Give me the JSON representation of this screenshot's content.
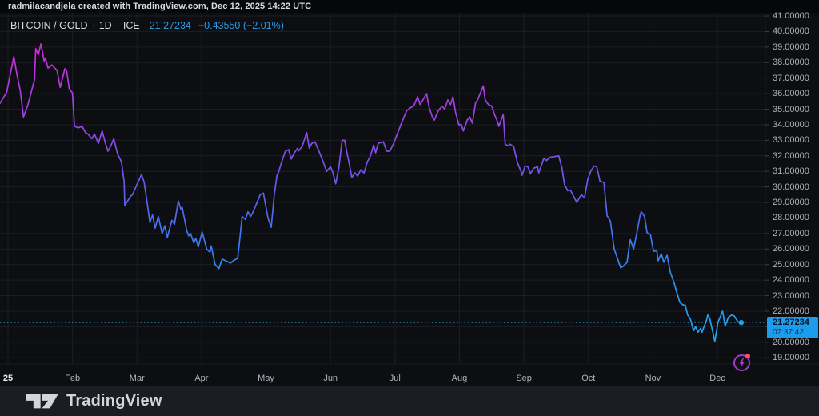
{
  "attribution": {
    "text": "radmilacandjela created with TradingView.com, Dec 12, 2025 14:22 UTC"
  },
  "legend": {
    "symbol": "BITCOIN / GOLD",
    "separator": "·",
    "interval": "1D",
    "exchange": "ICE",
    "price": "21.27234",
    "change": "−0.43550 (−2.01%)"
  },
  "price_label": {
    "price": "21.27234",
    "countdown": "07:37:42"
  },
  "footer": {
    "brand": "TradingView"
  },
  "icons": {
    "bubble": "lightning-icon",
    "notification": "red-dot",
    "logo": "tradingview-logo"
  },
  "colors": {
    "background": "#0d0e11",
    "footer_background": "#1b1d22",
    "grid": "#1b1e24",
    "axis_text": "#aeb2ba",
    "axis_separator": "#17191f",
    "accent_blue": "#2a9be0",
    "price_tag_bg": "#1c9cec",
    "price_tag_text": "#081526",
    "dotted_line": "#2e9fd8",
    "end_dot": "#1ea4f0",
    "bubble_purple": "#a43ac9",
    "notification_red": "#f7525f",
    "line_gradient": [
      [
        0.0,
        "#e11fe4"
      ],
      [
        0.09,
        "#cb29d9"
      ],
      [
        0.23,
        "#a93ce2"
      ],
      [
        0.36,
        "#8a4ae8"
      ],
      [
        0.5,
        "#6659ee"
      ],
      [
        0.64,
        "#3f74f2"
      ],
      [
        0.77,
        "#2b90f0"
      ],
      [
        0.91,
        "#1ea3ef"
      ],
      [
        1.0,
        "#18abf0"
      ]
    ]
  },
  "chart_data": {
    "type": "line",
    "title": "BITCOIN / GOLD · 1D · ICE",
    "last_price": 21.27234,
    "change": "−0.43550",
    "change_percent": "−2.01%",
    "countdown": "07:37:42",
    "grid": true,
    "legend_position": "top-left",
    "x_axis": {
      "unit": "months since Jan 1 2025",
      "ticks": [
        "25",
        "Feb",
        "Mar",
        "Apr",
        "May",
        "Jun",
        "Jul",
        "Aug",
        "Sep",
        "Oct",
        "Nov",
        "Dec"
      ]
    },
    "y_axis": {
      "min": 19,
      "max": 41,
      "ticks": [
        "41.00000",
        "40.00000",
        "39.00000",
        "38.00000",
        "37.00000",
        "36.00000",
        "35.00000",
        "34.00000",
        "33.00000",
        "32.00000",
        "31.00000",
        "30.00000",
        "29.00000",
        "28.00000",
        "27.00000",
        "26.00000",
        "25.00000",
        "24.00000",
        "23.00000",
        "22.00000",
        "21.00000",
        "20.00000",
        "19.00000"
      ]
    },
    "series": [
      {
        "name": "BITCOIN / GOLD",
        "points": [
          [
            -0.12,
            35.4
          ],
          [
            -0.02,
            36.1
          ],
          [
            0.09,
            38.4
          ],
          [
            0.14,
            37.2
          ],
          [
            0.19,
            36.2
          ],
          [
            0.24,
            34.5
          ],
          [
            0.31,
            35.3
          ],
          [
            0.41,
            36.9
          ],
          [
            0.43,
            38.9
          ],
          [
            0.47,
            38.5
          ],
          [
            0.51,
            39.2
          ],
          [
            0.56,
            38.1
          ],
          [
            0.58,
            38.3
          ],
          [
            0.62,
            37.65
          ],
          [
            0.68,
            37.85
          ],
          [
            0.76,
            37.5
          ],
          [
            0.81,
            36.4
          ],
          [
            0.88,
            37.6
          ],
          [
            0.91,
            37.45
          ],
          [
            0.95,
            36.3
          ],
          [
            1.0,
            36.05
          ],
          [
            1.03,
            33.9
          ],
          [
            1.09,
            33.8
          ],
          [
            1.15,
            33.9
          ],
          [
            1.2,
            33.5
          ],
          [
            1.24,
            33.4
          ],
          [
            1.3,
            33.1
          ],
          [
            1.34,
            33.4
          ],
          [
            1.4,
            32.8
          ],
          [
            1.46,
            33.6
          ],
          [
            1.51,
            32.8
          ],
          [
            1.55,
            32.3
          ],
          [
            1.59,
            32.6
          ],
          [
            1.64,
            33.1
          ],
          [
            1.7,
            32.1
          ],
          [
            1.76,
            31.6
          ],
          [
            1.8,
            30.3
          ],
          [
            1.81,
            28.8
          ],
          [
            1.9,
            29.4
          ],
          [
            1.93,
            29.5
          ],
          [
            2.07,
            30.8
          ],
          [
            2.11,
            30.3
          ],
          [
            2.16,
            28.9
          ],
          [
            2.2,
            27.7
          ],
          [
            2.24,
            28.2
          ],
          [
            2.28,
            27.35
          ],
          [
            2.33,
            28.1
          ],
          [
            2.39,
            27.0
          ],
          [
            2.43,
            27.5
          ],
          [
            2.47,
            26.75
          ],
          [
            2.54,
            27.85
          ],
          [
            2.58,
            27.6
          ],
          [
            2.64,
            29.1
          ],
          [
            2.68,
            28.55
          ],
          [
            2.7,
            28.7
          ],
          [
            2.77,
            27.2
          ],
          [
            2.8,
            26.85
          ],
          [
            2.83,
            27.0
          ],
          [
            2.88,
            26.4
          ],
          [
            2.91,
            26.7
          ],
          [
            2.95,
            26.15
          ],
          [
            3.01,
            27.1
          ],
          [
            3.08,
            26.0
          ],
          [
            3.13,
            25.8
          ],
          [
            3.15,
            26.2
          ],
          [
            3.21,
            25.0
          ],
          [
            3.27,
            24.75
          ],
          [
            3.32,
            25.35
          ],
          [
            3.37,
            25.25
          ],
          [
            3.45,
            25.1
          ],
          [
            3.48,
            25.2
          ],
          [
            3.51,
            25.3
          ],
          [
            3.56,
            25.4
          ],
          [
            3.6,
            26.9
          ],
          [
            3.63,
            28.1
          ],
          [
            3.68,
            27.9
          ],
          [
            3.72,
            28.4
          ],
          [
            3.76,
            28.1
          ],
          [
            3.79,
            28.3
          ],
          [
            3.84,
            28.8
          ],
          [
            3.91,
            29.5
          ],
          [
            3.96,
            29.6
          ],
          [
            4.03,
            28.0
          ],
          [
            4.08,
            27.4
          ],
          [
            4.13,
            29.55
          ],
          [
            4.17,
            30.75
          ],
          [
            4.19,
            30.9
          ],
          [
            4.25,
            31.7
          ],
          [
            4.3,
            32.3
          ],
          [
            4.35,
            32.4
          ],
          [
            4.39,
            31.8
          ],
          [
            4.44,
            32.2
          ],
          [
            4.49,
            32.5
          ],
          [
            4.5,
            32.3
          ],
          [
            4.56,
            32.6
          ],
          [
            4.63,
            33.5
          ],
          [
            4.67,
            32.5
          ],
          [
            4.71,
            32.8
          ],
          [
            4.76,
            32.9
          ],
          [
            4.81,
            32.4
          ],
          [
            4.87,
            31.8
          ],
          [
            4.94,
            31.0
          ],
          [
            5.0,
            31.3
          ],
          [
            5.03,
            31.0
          ],
          [
            5.08,
            30.2
          ],
          [
            5.13,
            31.25
          ],
          [
            5.18,
            33.0
          ],
          [
            5.22,
            33.0
          ],
          [
            5.25,
            32.3
          ],
          [
            5.3,
            31.3
          ],
          [
            5.33,
            30.6
          ],
          [
            5.38,
            30.9
          ],
          [
            5.42,
            30.7
          ],
          [
            5.47,
            31.1
          ],
          [
            5.52,
            30.9
          ],
          [
            5.57,
            31.6
          ],
          [
            5.62,
            32.0
          ],
          [
            5.67,
            32.7
          ],
          [
            5.7,
            32.2
          ],
          [
            5.74,
            32.8
          ],
          [
            5.82,
            32.9
          ],
          [
            5.87,
            32.3
          ],
          [
            5.92,
            32.3
          ],
          [
            5.98,
            32.8
          ],
          [
            6.11,
            34.2
          ],
          [
            6.18,
            34.9
          ],
          [
            6.24,
            35.1
          ],
          [
            6.29,
            35.2
          ],
          [
            6.35,
            35.8
          ],
          [
            6.39,
            35.3
          ],
          [
            6.49,
            36.0
          ],
          [
            6.53,
            35.1
          ],
          [
            6.58,
            34.5
          ],
          [
            6.61,
            34.3
          ],
          [
            6.67,
            34.9
          ],
          [
            6.73,
            35.2
          ],
          [
            6.77,
            35.0
          ],
          [
            6.82,
            35.6
          ],
          [
            6.86,
            35.3
          ],
          [
            6.9,
            35.8
          ],
          [
            6.94,
            34.8
          ],
          [
            6.99,
            34.0
          ],
          [
            7.03,
            34.0
          ],
          [
            7.06,
            33.6
          ],
          [
            7.12,
            34.3
          ],
          [
            7.16,
            34.5
          ],
          [
            7.2,
            34.1
          ],
          [
            7.25,
            35.4
          ],
          [
            7.28,
            35.6
          ],
          [
            7.37,
            36.5
          ],
          [
            7.4,
            35.6
          ],
          [
            7.45,
            35.3
          ],
          [
            7.5,
            35.2
          ],
          [
            7.54,
            34.7
          ],
          [
            7.59,
            34.2
          ],
          [
            7.61,
            33.9
          ],
          [
            7.68,
            34.65
          ],
          [
            7.71,
            32.75
          ],
          [
            7.75,
            32.65
          ],
          [
            7.78,
            32.75
          ],
          [
            7.84,
            32.6
          ],
          [
            7.9,
            31.55
          ],
          [
            7.95,
            31.05
          ],
          [
            7.97,
            30.75
          ],
          [
            8.02,
            31.35
          ],
          [
            8.06,
            31.3
          ],
          [
            8.1,
            30.85
          ],
          [
            8.15,
            31.2
          ],
          [
            8.21,
            31.3
          ],
          [
            8.23,
            30.9
          ],
          [
            8.31,
            31.85
          ],
          [
            8.35,
            31.7
          ],
          [
            8.4,
            31.9
          ],
          [
            8.54,
            32.0
          ],
          [
            8.59,
            31.2
          ],
          [
            8.63,
            30.15
          ],
          [
            8.68,
            29.75
          ],
          [
            8.72,
            29.8
          ],
          [
            8.82,
            29.0
          ],
          [
            8.89,
            29.5
          ],
          [
            8.94,
            29.3
          ],
          [
            8.99,
            30.5
          ],
          [
            9.04,
            31.05
          ],
          [
            9.09,
            31.35
          ],
          [
            9.13,
            31.3
          ],
          [
            9.18,
            30.35
          ],
          [
            9.24,
            30.3
          ],
          [
            9.29,
            28.15
          ],
          [
            9.34,
            27.8
          ],
          [
            9.4,
            26.0
          ],
          [
            9.5,
            24.8
          ],
          [
            9.54,
            24.9
          ],
          [
            9.6,
            25.15
          ],
          [
            9.63,
            26.1
          ],
          [
            9.65,
            26.6
          ],
          [
            9.7,
            26.0
          ],
          [
            9.75,
            27.0
          ],
          [
            9.8,
            28.15
          ],
          [
            9.82,
            28.4
          ],
          [
            9.87,
            28.1
          ],
          [
            9.91,
            27.05
          ],
          [
            9.96,
            26.95
          ],
          [
            10.01,
            25.85
          ],
          [
            10.06,
            25.9
          ],
          [
            10.08,
            25.25
          ],
          [
            10.13,
            25.7
          ],
          [
            10.17,
            25.15
          ],
          [
            10.22,
            25.6
          ],
          [
            10.27,
            24.5
          ],
          [
            10.33,
            23.8
          ],
          [
            10.37,
            23.2
          ],
          [
            10.42,
            22.55
          ],
          [
            10.47,
            22.4
          ],
          [
            10.5,
            22.4
          ],
          [
            10.54,
            21.75
          ],
          [
            10.58,
            21.5
          ],
          [
            10.63,
            20.75
          ],
          [
            10.66,
            21.0
          ],
          [
            10.7,
            20.65
          ],
          [
            10.74,
            20.9
          ],
          [
            10.76,
            20.65
          ],
          [
            10.83,
            21.4
          ],
          [
            10.85,
            21.75
          ],
          [
            10.88,
            21.55
          ],
          [
            10.96,
            20.05
          ],
          [
            11.01,
            21.3
          ],
          [
            11.06,
            21.8
          ],
          [
            11.08,
            22.0
          ],
          [
            11.12,
            21.05
          ],
          [
            11.17,
            21.6
          ],
          [
            11.22,
            21.75
          ],
          [
            11.26,
            21.7
          ],
          [
            11.32,
            21.3
          ],
          [
            11.37,
            21.27
          ]
        ]
      }
    ]
  }
}
